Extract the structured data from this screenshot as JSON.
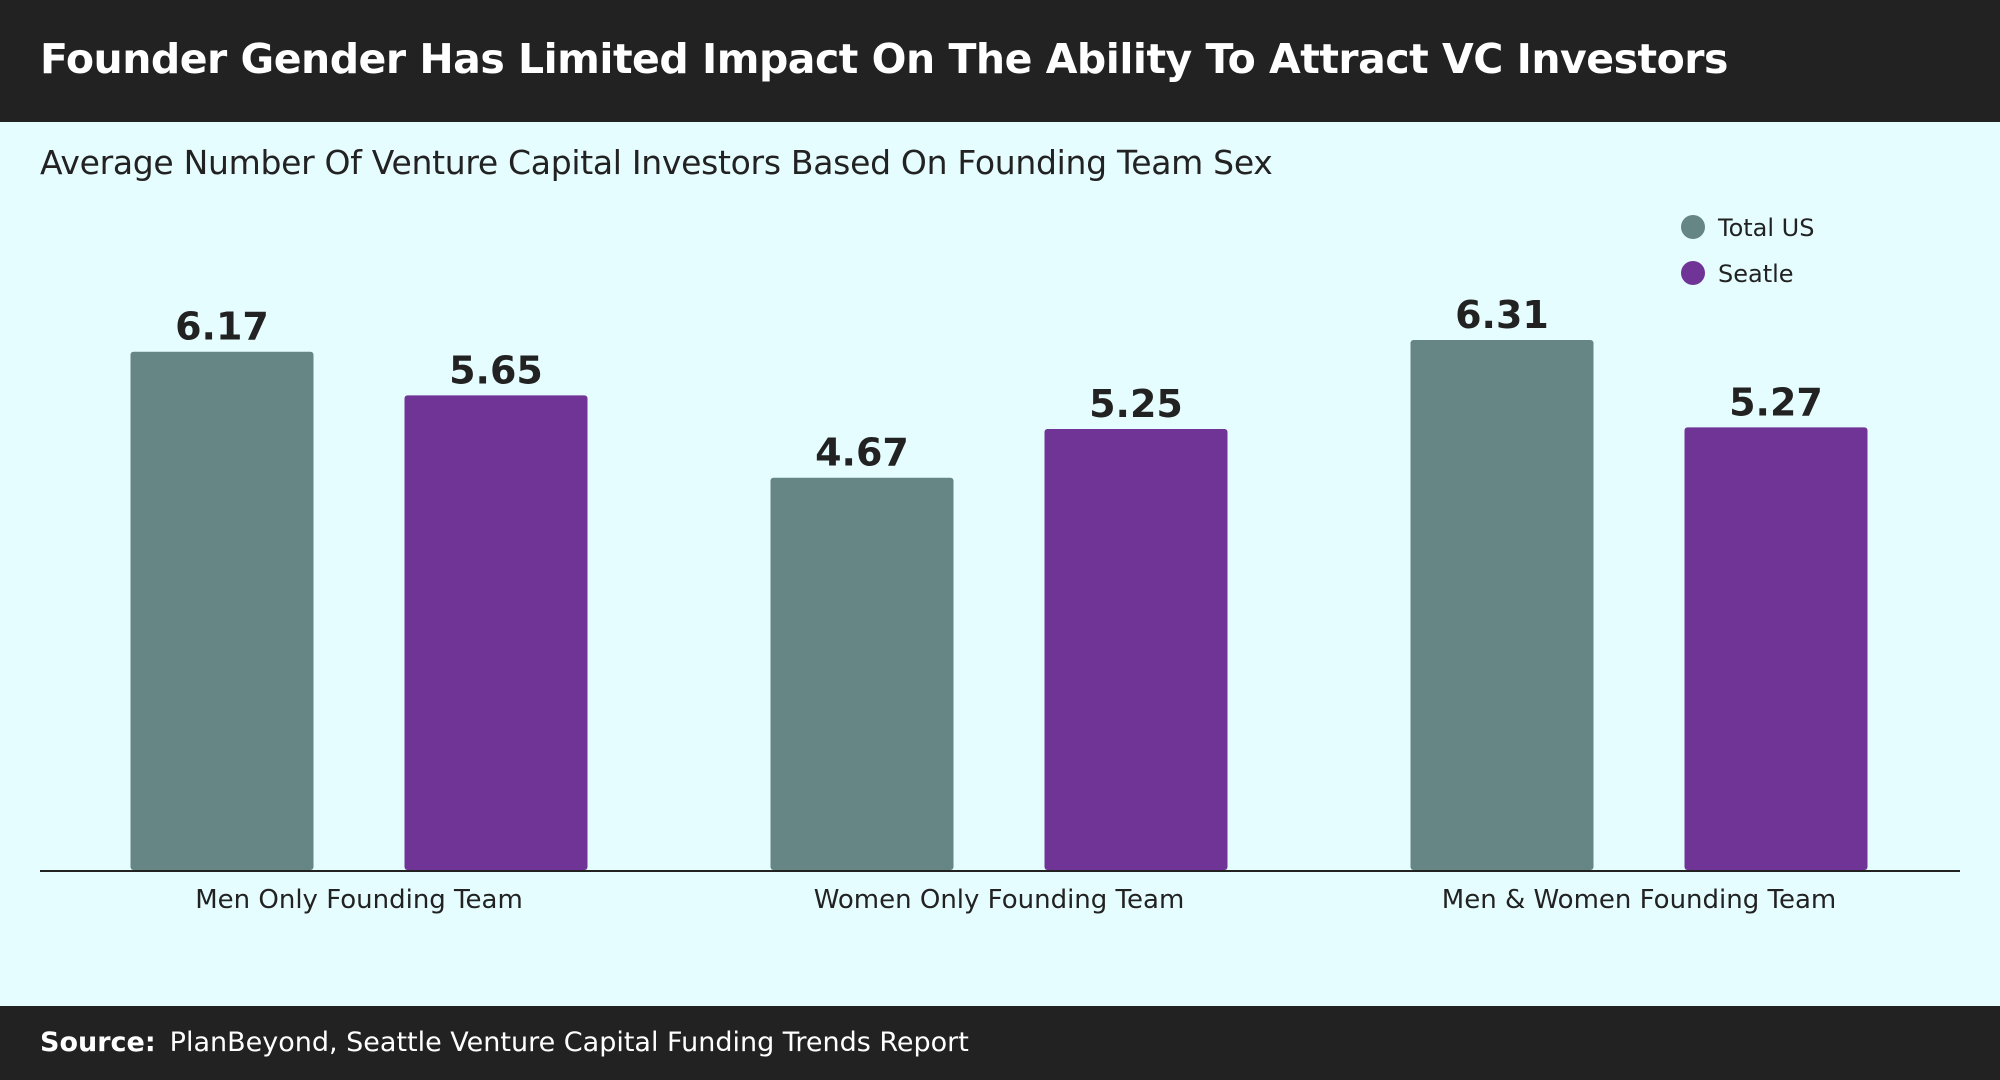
{
  "header": {
    "title": "Founder Gender Has Limited Impact On The Ability To Attract VC Investors"
  },
  "footer": {
    "source_label": "Source:",
    "source_text": "PlanBeyond, Seattle Venture Capital Funding Trends Report"
  },
  "colors": {
    "total_us": "#668585",
    "seattle": "#6f3496",
    "header_bg": "#222222",
    "page_bg": "#e6fdff",
    "text_dark": "#222222"
  },
  "chart_data": {
    "type": "bar",
    "subtitle": "Average Number Of Venture Capital Investors Based On Founding Team Sex",
    "categories": [
      "Men Only Founding Team",
      "Women Only Founding Team",
      "Men & Women Founding Team"
    ],
    "series": [
      {
        "name": "Total US",
        "values": [
          6.17,
          4.67,
          6.31
        ]
      },
      {
        "name": "Seatle",
        "values": [
          5.65,
          5.25,
          5.27
        ]
      }
    ],
    "value_labels": [
      [
        "6.17",
        "4.67",
        "6.31"
      ],
      [
        "5.65",
        "5.25",
        "5.27"
      ]
    ],
    "ylim": [
      0,
      8
    ],
    "grid": false,
    "legend_position": "top-right"
  }
}
